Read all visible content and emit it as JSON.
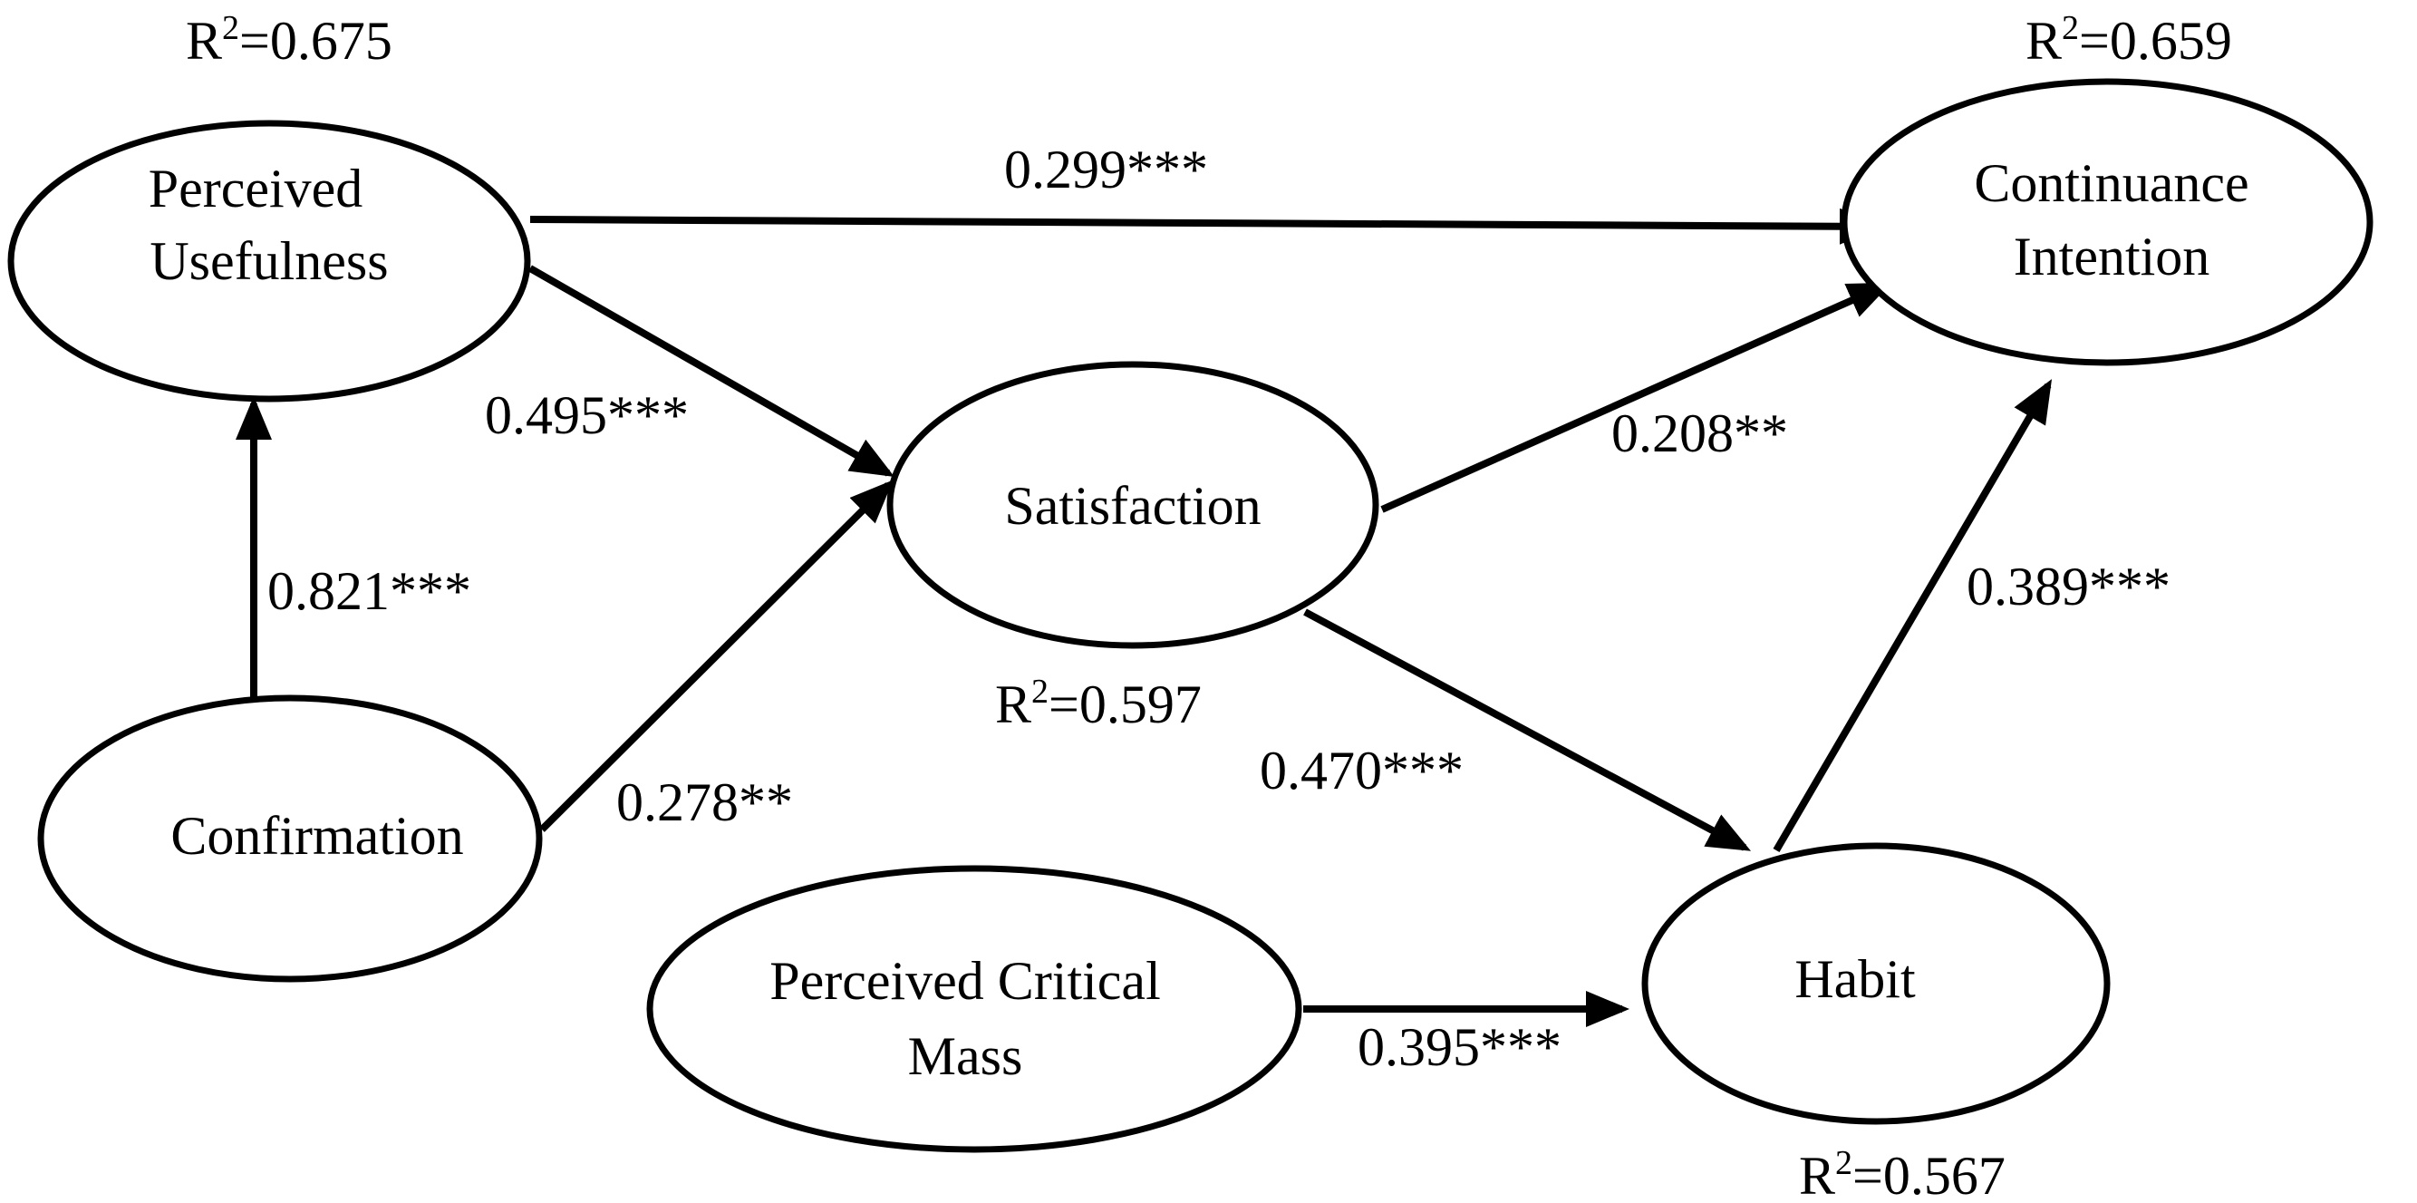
{
  "nodes": {
    "perceived_usefulness": {
      "lines": [
        "Perceived",
        "Usefulness"
      ],
      "r2_prefix": "R",
      "r2_sup": "2",
      "r2_value": "=0.675"
    },
    "continuance_intention": {
      "lines": [
        "Continuance",
        "Intention"
      ],
      "r2_prefix": "R",
      "r2_sup": "2",
      "r2_value": "=0.659"
    },
    "satisfaction": {
      "lines": [
        "Satisfaction"
      ],
      "r2_prefix": "R",
      "r2_sup": "2",
      "r2_value": "=0.597"
    },
    "confirmation": {
      "lines": [
        "Confirmation"
      ]
    },
    "perceived_critical_mass": {
      "lines": [
        "Perceived Critical",
        "Mass"
      ]
    },
    "habit": {
      "lines": [
        "Habit"
      ],
      "r2_prefix": "R",
      "r2_sup": "2",
      "r2_value": "=0.567"
    }
  },
  "paths": {
    "pu_to_ci": {
      "from": "Perceived Usefulness",
      "to": "Continuance Intention",
      "coefficient": "0.299***"
    },
    "pu_to_sat": {
      "from": "Perceived Usefulness",
      "to": "Satisfaction",
      "coefficient": "0.495***"
    },
    "conf_to_pu": {
      "from": "Confirmation",
      "to": "Perceived Usefulness",
      "coefficient": "0.821***"
    },
    "conf_to_sat": {
      "from": "Confirmation",
      "to": "Satisfaction",
      "coefficient": "0.278**"
    },
    "sat_to_ci": {
      "from": "Satisfaction",
      "to": "Continuance Intention",
      "coefficient": "0.208**"
    },
    "sat_to_habit": {
      "from": "Satisfaction",
      "to": "Habit",
      "coefficient": "0.470***"
    },
    "habit_to_ci": {
      "from": "Habit",
      "to": "Continuance Intention",
      "coefficient": "0.389***"
    },
    "pcm_to_habit": {
      "from": "Perceived Critical Mass",
      "to": "Habit",
      "coefficient": "0.395***"
    }
  },
  "colors": {
    "stroke": "#000000",
    "background": "#ffffff"
  }
}
